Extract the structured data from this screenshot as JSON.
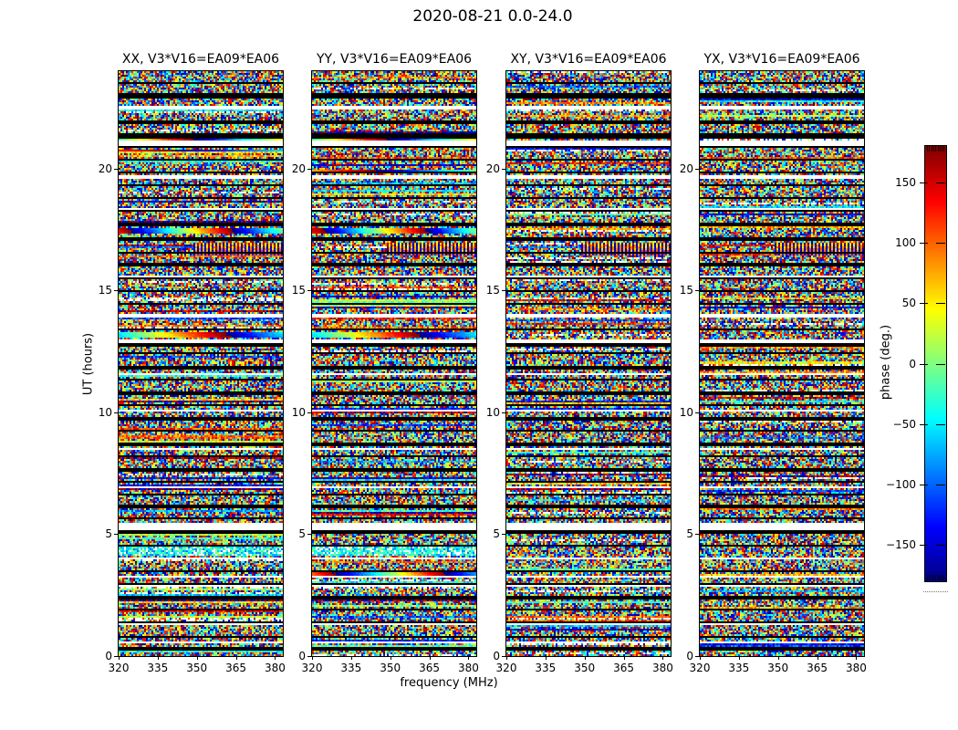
{
  "figure": {
    "title": "2020-08-21 0.0-24.0",
    "xlabel": "frequency (MHz)",
    "ylabel": "UT (hours)",
    "colorbar_label": "phase (deg.)",
    "background_color": "#ffffff"
  },
  "panels": [
    {
      "id": "XX",
      "title": "XX, V3*V16=EA09*EA06"
    },
    {
      "id": "YY",
      "title": "YY, V3*V16=EA09*EA06"
    },
    {
      "id": "XY",
      "title": "XY, V3*V16=EA09*EA06"
    },
    {
      "id": "YX",
      "title": "YX, V3*V16=EA09*EA06"
    }
  ],
  "tick_labels": {
    "x": [
      "320",
      "335",
      "350",
      "365",
      "380"
    ],
    "y": [
      "0",
      "5",
      "10",
      "15",
      "20"
    ],
    "colorbar": [
      "150",
      "100",
      "50",
      "0",
      "−50",
      "−100",
      "−150"
    ]
  },
  "chart_data": {
    "type": "heatmap",
    "title": "2020-08-21 0.0-24.0",
    "subplot_titles": [
      "XX, V3*V16=EA09*EA06",
      "YY, V3*V16=EA09*EA06",
      "XY, V3*V16=EA09*EA06",
      "YX, V3*V16=EA09*EA06"
    ],
    "xlabel": "frequency (MHz)",
    "ylabel": "UT (hours)",
    "x_ticks": [
      320,
      335,
      350,
      365,
      380
    ],
    "y_ticks": [
      0,
      5,
      10,
      15,
      20
    ],
    "x_range": [
      320,
      383
    ],
    "y_range": [
      0,
      24
    ],
    "grid": false,
    "colormap": "jet",
    "value_label": "phase (deg.)",
    "value_range": [
      -180,
      180
    ],
    "colorbar_ticks": [
      150,
      100,
      50,
      0,
      -50,
      -100,
      -150
    ],
    "content": "per-cell uniform random interferometric phase noise in each frequency-time pixel, interrupted by horizontal scan-boundary black lines, white missing-data gaps, and occasional smooth phase-gradient bands",
    "features": {
      "seed": 20200821,
      "grid_cells": {
        "cols": 90,
        "rows": 320
      },
      "black_scan_lines_ut": [
        0.3,
        0.8,
        1.35,
        1.9,
        2.4,
        2.95,
        3.5,
        4.0,
        4.55,
        5.1,
        5.65,
        6.15,
        6.65,
        7.15,
        7.65,
        8.2,
        8.7,
        9.25,
        9.75,
        10.3,
        10.8,
        11.35,
        11.85,
        12.4,
        13.4,
        13.9,
        14.45,
        14.95,
        15.5,
        16.05,
        16.55,
        17.1,
        18.25,
        18.8,
        19.3,
        19.85,
        20.35,
        20.9,
        21.9,
        22.45,
        23.5
      ],
      "thick_black_lines_ut": [
        12.75,
        17.7,
        21.35,
        23.0
      ],
      "white_gaps": [
        {
          "ut": 22.5,
          "h": 0.08
        },
        {
          "ut": 21.05,
          "h": 0.18
        },
        {
          "ut": 19.65,
          "h": 0.1
        },
        {
          "ut": 18.35,
          "h": 0.1
        },
        {
          "ut": 15.55,
          "h": 0.1
        },
        {
          "ut": 13.95,
          "h": 0.08
        },
        {
          "ut": 12.9,
          "h": 0.12
        },
        {
          "ut": 11.6,
          "h": 0.1
        },
        {
          "ut": 10.1,
          "h": 0.1
        },
        {
          "ut": 8.5,
          "h": 0.1
        },
        {
          "ut": 6.95,
          "h": 0.1
        },
        {
          "ut": 5.35,
          "h": 0.3
        },
        {
          "ut": 4.0,
          "h": 0.1
        },
        {
          "ut": 3.25,
          "h": 0.1
        },
        {
          "ut": 2.9,
          "h": 0.08
        },
        {
          "ut": 1.3,
          "h": 0.1
        },
        {
          "ut": 0.55,
          "h": 0.06
        }
      ],
      "gradient_bands": [
        {
          "ut": 21.15,
          "h": 0.2,
          "panels": [
            0,
            1
          ],
          "type": "smooth",
          "cycles": 1.2,
          "base": 0.45
        },
        {
          "ut": 20.75,
          "h": 0.12,
          "panels": [
            0
          ],
          "type": "smooth",
          "cycles": 0.5,
          "base": 0.85
        },
        {
          "ut": 19.9,
          "h": 0.15,
          "panels": [
            1
          ],
          "type": "smooth",
          "cycles": 0.8,
          "base": 0.7
        },
        {
          "ut": 17.45,
          "h": 0.22,
          "panels": [
            0,
            1
          ],
          "type": "smooth",
          "cycles": 1.6,
          "base": 0.9
        },
        {
          "ut": 13.15,
          "h": 0.25,
          "panels": [
            0,
            1
          ],
          "type": "smooth",
          "cycles": 1.0,
          "base": 0.35
        },
        {
          "ut": 4.3,
          "h": 0.35,
          "panels": [
            0,
            1
          ],
          "type": "speckle",
          "cycles": 0,
          "base": 0.38
        },
        {
          "ut": 3.4,
          "h": 0.15,
          "panels": [
            1
          ],
          "type": "smooth",
          "cycles": 1.5,
          "base": 0.8
        }
      ],
      "fringe_band": {
        "ut_min": 16.4,
        "ut_max": 16.95,
        "x_start_frac": 0.45
      }
    }
  }
}
